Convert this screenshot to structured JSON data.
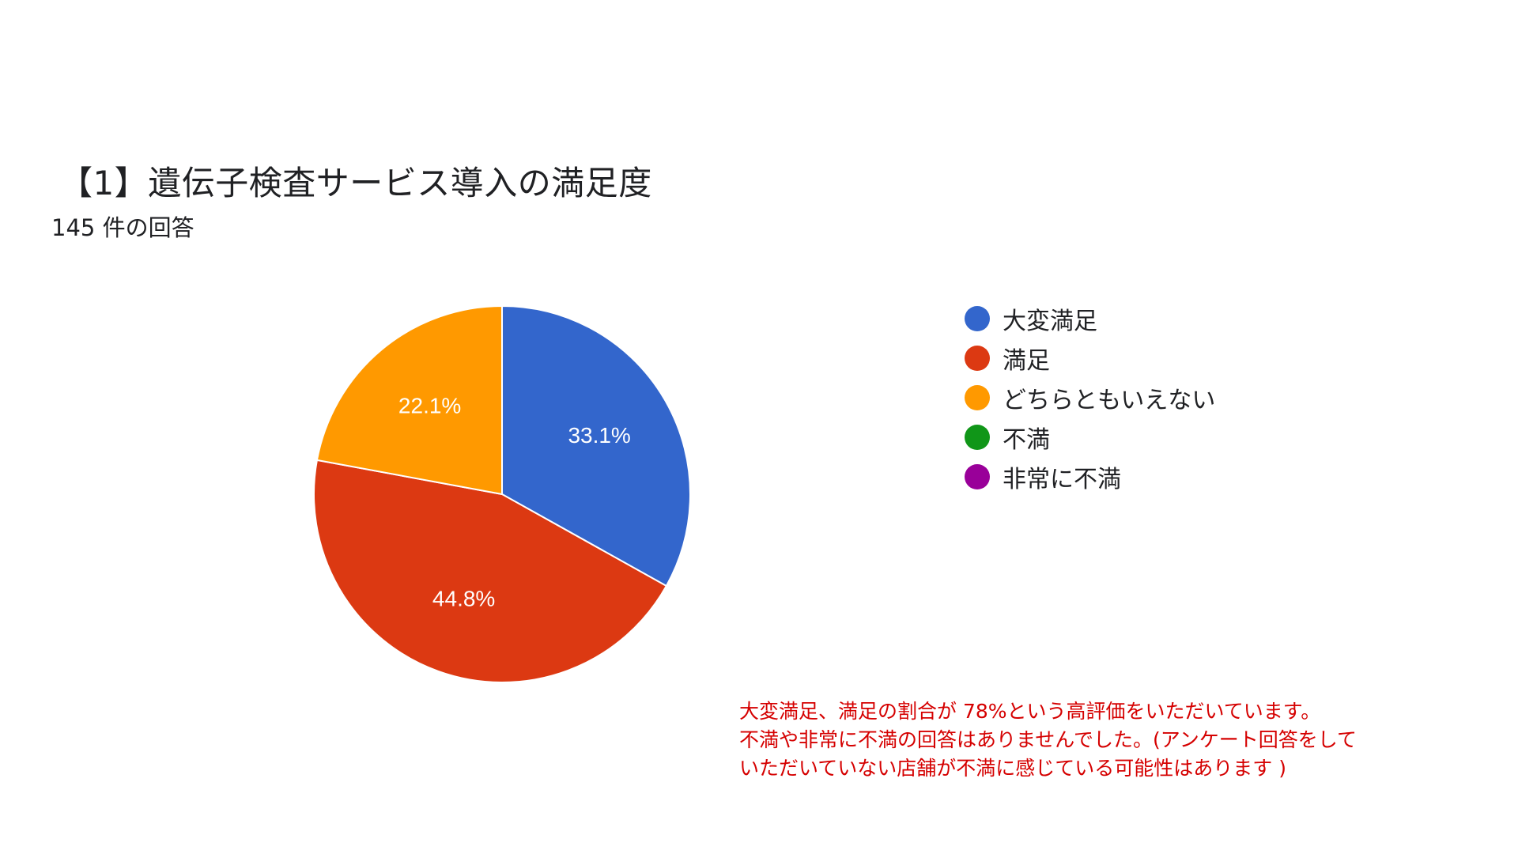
{
  "chart_data": {
    "type": "pie",
    "title": "【1】遺伝子検査サービス導入の満足度",
    "subtitle": "145 件の回答",
    "categories": [
      "大変満足",
      "満足",
      "どちらともいえない",
      "不満",
      "非常に不満"
    ],
    "values": [
      33.1,
      44.8,
      22.1,
      0,
      0
    ],
    "value_labels": [
      "33.1%",
      "44.8%",
      "22.1%",
      "",
      ""
    ],
    "colors": [
      "#3366cc",
      "#dc3912",
      "#ff9900",
      "#109618",
      "#990099"
    ],
    "start_angle_deg": 90,
    "direction": "clockwise",
    "legend_position": "right"
  },
  "annotation": {
    "lines": [
      "大変満足、満足の割合が 78%という高評価をいただいています。",
      "不満や非常に不満の回答はありませんでした。(アンケート回答をして",
      "いただいていない店舗が不満に感じている可能性はあります  )"
    ]
  }
}
